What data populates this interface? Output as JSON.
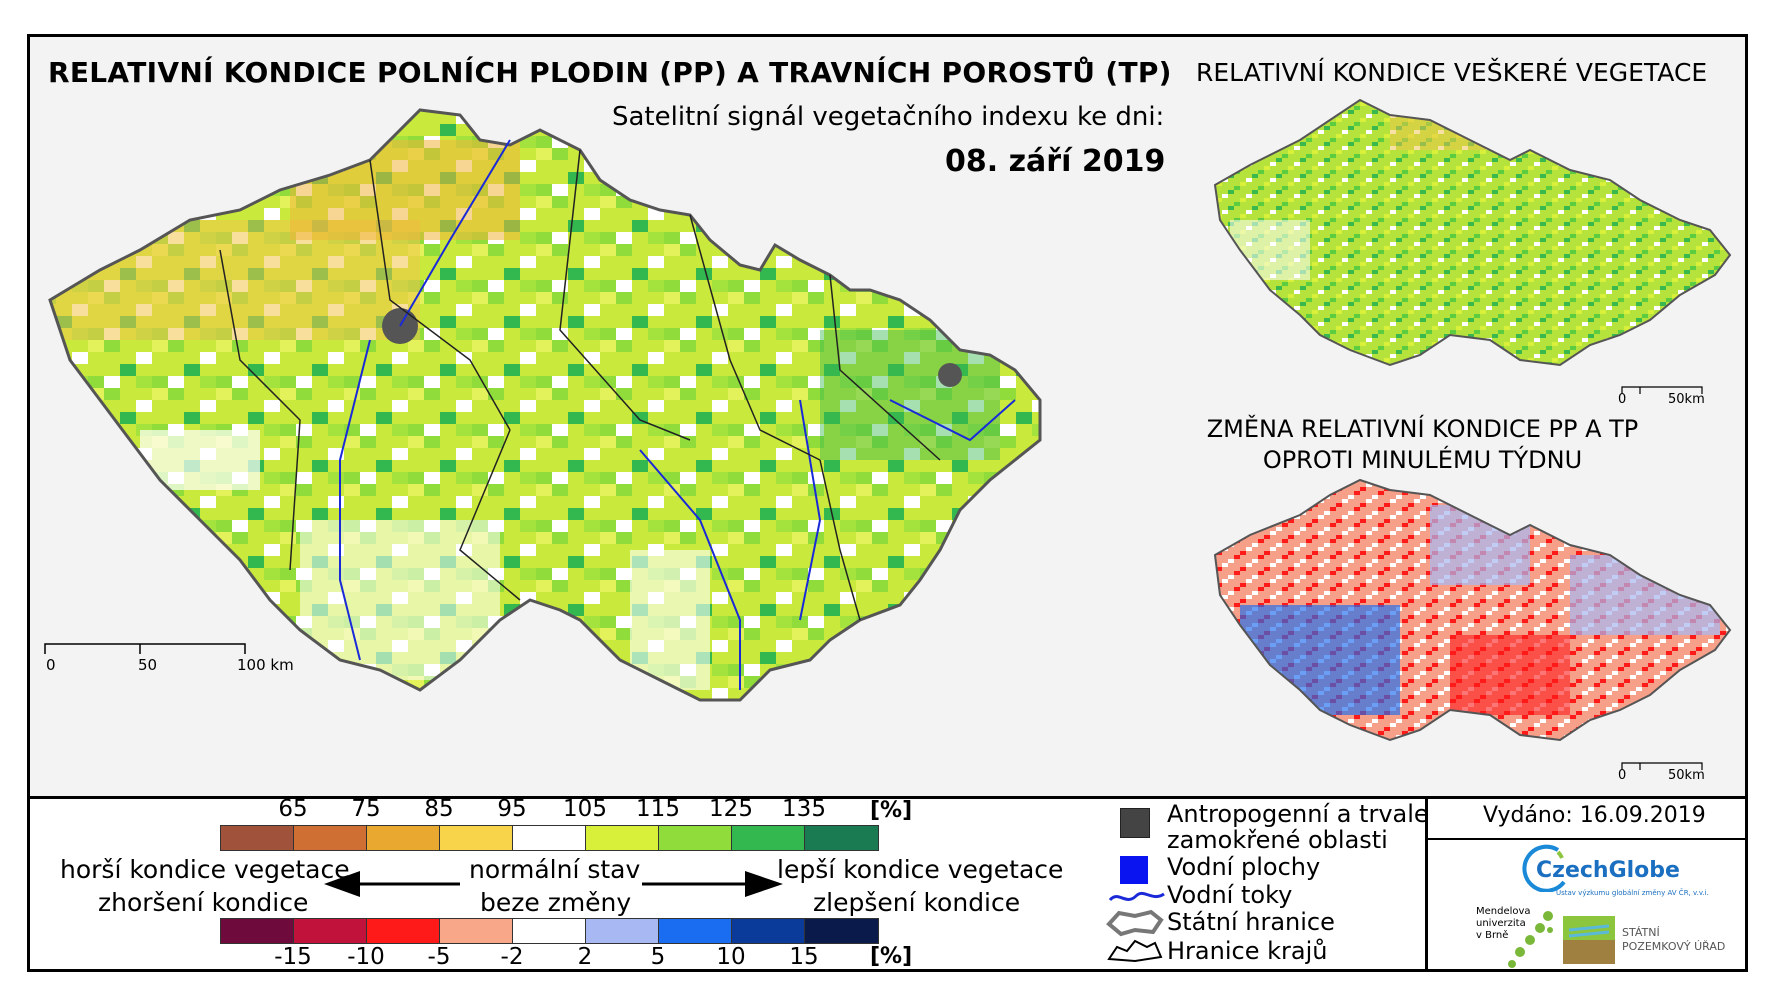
{
  "titles": {
    "main": "RELATIVNÍ KONDICE POLNÍCH PLODIN (PP) A TRAVNÍCH POROSTŮ (TP)",
    "subtitle": "Satelitní signál vegetačního indexu ke dni:",
    "date": "08. září 2019",
    "right_top": "RELATIVNÍ KONDICE VEŠKERÉ VEGETACE",
    "right_bottom_line1": "ZMĚNA RELATIVNÍ KONDICE PP A TP",
    "right_bottom_line2": "OPROTI MINULÉMU TÝDNU"
  },
  "scalebars": {
    "main": {
      "labels": [
        "0",
        "50",
        "100 km"
      ]
    },
    "small_top": {
      "labels": [
        "0",
        "50km"
      ]
    },
    "small_bottom": {
      "labels": [
        "0",
        "50km"
      ]
    }
  },
  "condition_scale": {
    "unit": "[%]",
    "ticks": [
      "65",
      "75",
      "85",
      "95",
      "105",
      "115",
      "125",
      "135"
    ],
    "colors": [
      "#a0523a",
      "#cf6f33",
      "#e9a82f",
      "#f7d44a",
      "#ffffff",
      "#d8f03a",
      "#8fdc3a",
      "#33b84f",
      "#1a7a52"
    ]
  },
  "change_scale": {
    "unit": "[%]",
    "ticks": [
      "-15",
      "-10",
      "-5",
      "-2",
      "2",
      "5",
      "10",
      "15"
    ],
    "colors": [
      "#6e0a3c",
      "#c0123a",
      "#ff1a1a",
      "#f8a889",
      "#ffffff",
      "#a8b8f2",
      "#1a6cf0",
      "#0a3a9a",
      "#0a1a4a"
    ]
  },
  "scale_text": {
    "left_line1": "horší kondice vegetace",
    "left_line2": "zhoršení kondice",
    "center_line1": "normální stav",
    "center_line2": "beze změny",
    "right_line1": "lepší kondice vegetace",
    "right_line2": "zlepšení kondice"
  },
  "map_legend": {
    "anthropogenic_line1": "Antropogenní a trvale",
    "anthropogenic_line2": "zamokřené oblasti",
    "water_areas": "Vodní plochy",
    "water_streams": "Vodní toky",
    "state_border": "Státní hranice",
    "region_border": "Hranice krajů",
    "colors": {
      "anthropogenic": "#444444",
      "water_areas": "#0a14f0",
      "streams": "#1a2ad8"
    }
  },
  "issued": "Vydáno: 16.09.2019",
  "logos": {
    "czechglobe": "CzechGlobe",
    "czechglobe_sub": "Ústav výzkumu globální změny AV ČR, v.v.i.",
    "mendel_line1": "Mendelova",
    "mendel_line2": "univerzita",
    "mendel_line3": "v Brně",
    "spu_line1": "STÁTNÍ",
    "spu_line2": "POZEMKOVÝ ÚŘAD"
  }
}
